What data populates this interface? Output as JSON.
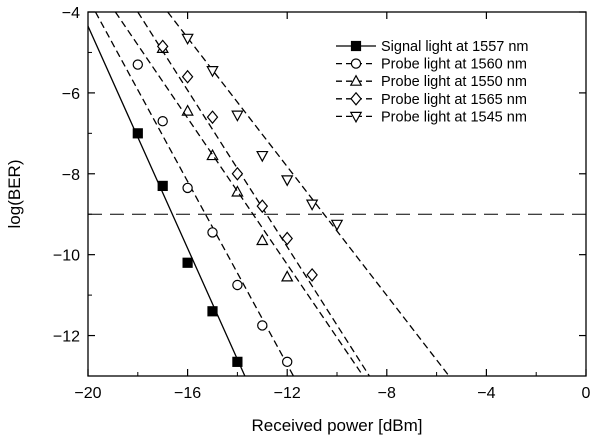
{
  "chart_data": {
    "type": "line",
    "xlabel": "Received power [dBm]",
    "ylabel": "log(BER)",
    "xlim": [
      -20,
      0
    ],
    "ylim": [
      -13,
      -4
    ],
    "xticks": [
      -20,
      -16,
      -12,
      -8,
      -4,
      0
    ],
    "yticks": [
      -12,
      -10,
      -8,
      -6,
      -4
    ],
    "xtick_labels": [
      "−20",
      "−16",
      "−12",
      "−8",
      "−4",
      "0"
    ],
    "ytick_labels": [
      "−12",
      "−10",
      "−8",
      "−6",
      "−4"
    ],
    "threshold": {
      "y": -9
    },
    "legend_position": "top-right",
    "grid": false,
    "series": [
      {
        "name": "Signal light at 1557 nm",
        "marker": "square-filled",
        "line": "solid",
        "points": [
          [
            -18,
            -7.0
          ],
          [
            -17,
            -8.3
          ],
          [
            -16,
            -10.2
          ],
          [
            -15,
            -11.4
          ],
          [
            -14,
            -12.65
          ]
        ],
        "fit": [
          [
            -20,
            -4.35
          ],
          [
            -13.7,
            -13.0
          ]
        ]
      },
      {
        "name": "Probe light at 1560 nm",
        "marker": "circle-open",
        "line": "dashed",
        "points": [
          [
            -18,
            -5.3
          ],
          [
            -17,
            -6.7
          ],
          [
            -16,
            -8.35
          ],
          [
            -15,
            -9.45
          ],
          [
            -14,
            -10.75
          ],
          [
            -13,
            -11.75
          ],
          [
            -12,
            -12.65
          ]
        ],
        "fit": [
          [
            -19.7,
            -4.0
          ],
          [
            -11.75,
            -13.0
          ]
        ]
      },
      {
        "name": "Probe light at 1550 nm",
        "marker": "triangle-open",
        "line": "dashed",
        "points": [
          [
            -17,
            -4.9
          ],
          [
            -16,
            -6.45
          ],
          [
            -15,
            -7.55
          ],
          [
            -14,
            -8.45
          ],
          [
            -13,
            -9.65
          ],
          [
            -12,
            -10.55
          ]
        ],
        "fit": [
          [
            -18.0,
            -4.0
          ],
          [
            -8.7,
            -13.0
          ]
        ]
      },
      {
        "name": "Probe light at 1565 nm",
        "marker": "diamond-open",
        "line": "dashed",
        "points": [
          [
            -17,
            -4.85
          ],
          [
            -16,
            -5.6
          ],
          [
            -15,
            -6.6
          ],
          [
            -14,
            -8.0
          ],
          [
            -13,
            -8.8
          ],
          [
            -12,
            -9.6
          ],
          [
            -11,
            -10.5
          ]
        ],
        "fit": [
          [
            -18.9,
            -4.0
          ],
          [
            -8.95,
            -13.0
          ]
        ]
      },
      {
        "name": "Probe light at 1545 nm",
        "marker": "inverted-triangle-open",
        "line": "dashed",
        "points": [
          [
            -16,
            -4.65
          ],
          [
            -15,
            -5.45
          ],
          [
            -14,
            -6.55
          ],
          [
            -13,
            -7.55
          ],
          [
            -12,
            -8.15
          ],
          [
            -11,
            -8.75
          ],
          [
            -10,
            -9.25
          ]
        ],
        "fit": [
          [
            -16.8,
            -4.0
          ],
          [
            -5.5,
            -13.0
          ]
        ]
      }
    ]
  }
}
